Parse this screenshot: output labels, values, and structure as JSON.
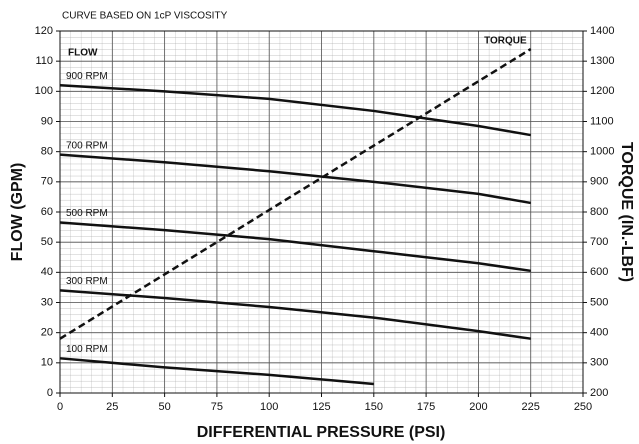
{
  "chart_data": {
    "type": "line",
    "subtitle": "CURVE BASED ON 1cP VISCOSITY",
    "annotation": "FLOW",
    "xlabel": "DIFFERENTIAL PRESSURE (PSI)",
    "ylabel": "FLOW (GPM)",
    "y2label": "TORQUE (IN.-LBF)",
    "xlim": [
      0,
      250
    ],
    "xticks": [
      0,
      25,
      50,
      75,
      100,
      125,
      150,
      175,
      200,
      225,
      250
    ],
    "ylim": [
      0,
      120
    ],
    "yticks": [
      0,
      10,
      20,
      30,
      40,
      50,
      60,
      70,
      80,
      90,
      100,
      110,
      120
    ],
    "y2lim": [
      200,
      1400
    ],
    "y2ticks": [
      200,
      300,
      400,
      500,
      600,
      700,
      800,
      900,
      1000,
      1100,
      1200,
      1300,
      1400
    ],
    "grid": true,
    "series": [
      {
        "name": "900 RPM",
        "color": "#111111",
        "x": [
          0,
          50,
          100,
          150,
          175,
          200,
          225
        ],
        "values": [
          102,
          100,
          97.5,
          93.5,
          91,
          88.5,
          85.5
        ]
      },
      {
        "name": "700 RPM",
        "color": "#111111",
        "x": [
          0,
          50,
          100,
          150,
          200,
          225
        ],
        "values": [
          79,
          76.5,
          73.5,
          70,
          66,
          63
        ]
      },
      {
        "name": "500 RPM",
        "color": "#111111",
        "x": [
          0,
          50,
          100,
          150,
          200,
          225
        ],
        "values": [
          56.5,
          54,
          51,
          47,
          43,
          40.5
        ]
      },
      {
        "name": "300 RPM",
        "color": "#111111",
        "x": [
          0,
          50,
          100,
          150,
          200,
          225
        ],
        "values": [
          34,
          31.5,
          28.5,
          25,
          20.5,
          18
        ]
      },
      {
        "name": "100 RPM",
        "color": "#111111",
        "x": [
          0,
          50,
          100,
          150
        ],
        "values": [
          11.5,
          8.5,
          6,
          3
        ]
      },
      {
        "name": "TORQUE",
        "color": "#111111",
        "axis": "y2",
        "style": "dashed",
        "x": [
          0,
          225
        ],
        "values": [
          380,
          1340
        ]
      }
    ]
  }
}
